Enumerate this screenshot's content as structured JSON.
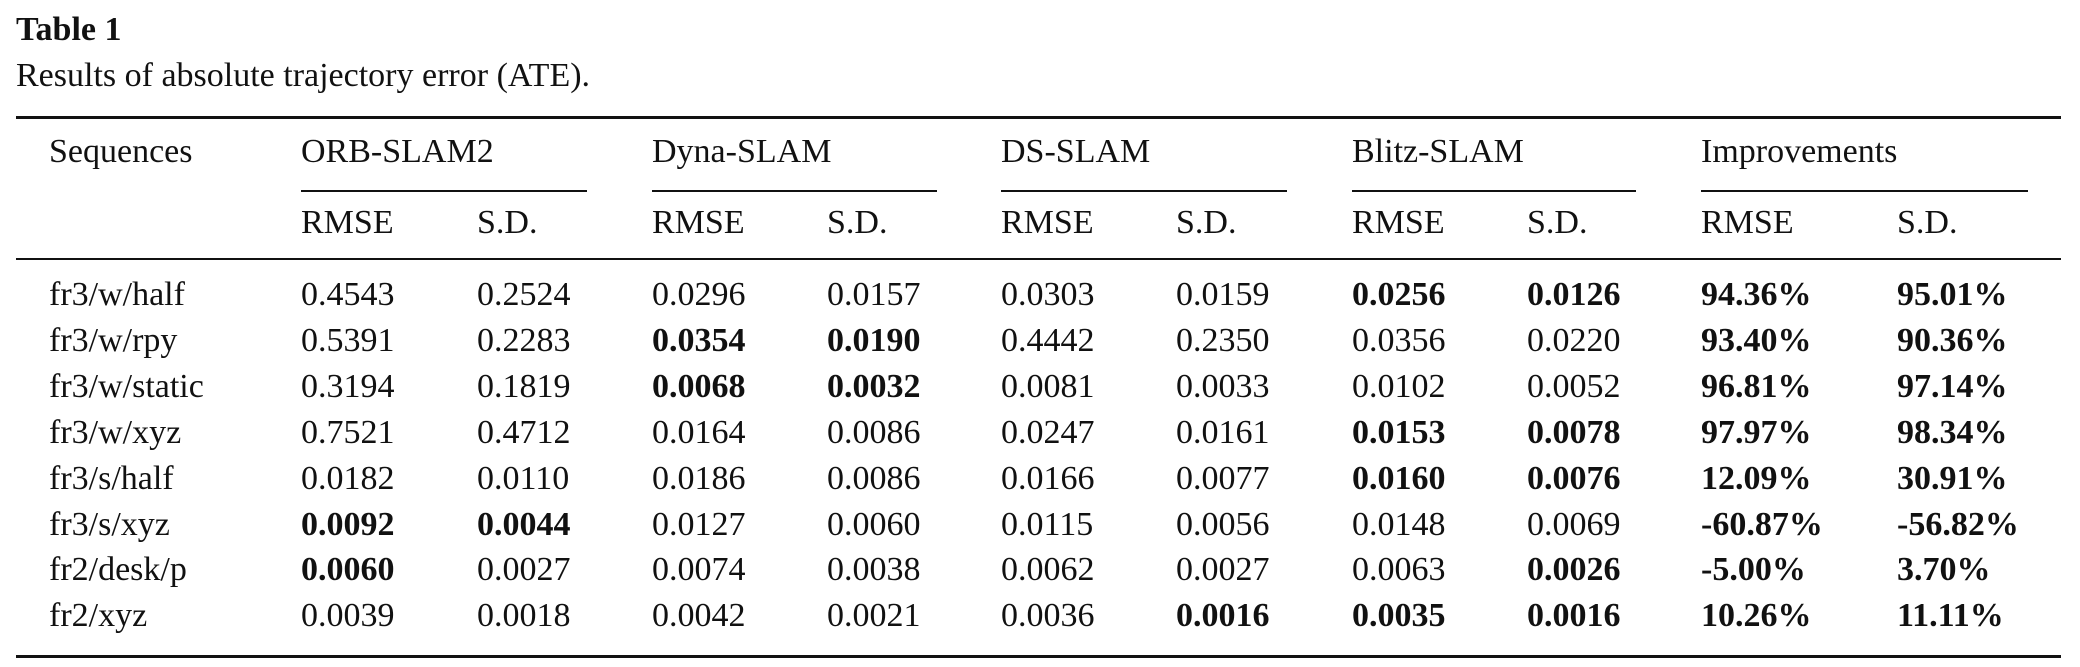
{
  "title": "Table 1",
  "caption": "Results of absolute trajectory error (ATE).",
  "table": {
    "groups": [
      "Sequences",
      "ORB-SLAM2",
      "Dyna-SLAM",
      "DS-SLAM",
      "Blitz-SLAM",
      "Improvements"
    ],
    "subheaders": [
      "RMSE",
      "S.D.",
      "RMSE",
      "S.D.",
      "RMSE",
      "S.D.",
      "RMSE",
      "S.D.",
      "RMSE",
      "S.D."
    ],
    "rows": [
      {
        "cells": [
          "fr3/w/half",
          "0.4543",
          "0.2524",
          "0.0296",
          "0.0157",
          "0.0303",
          "0.0159",
          "0.0256",
          "0.0126",
          "94.36%",
          "95.01%"
        ],
        "bold": [
          7,
          8,
          9,
          10
        ]
      },
      {
        "cells": [
          "fr3/w/rpy",
          "0.5391",
          "0.2283",
          "0.0354",
          "0.0190",
          "0.4442",
          "0.2350",
          "0.0356",
          "0.0220",
          "93.40%",
          "90.36%"
        ],
        "bold": [
          3,
          4,
          9,
          10
        ]
      },
      {
        "cells": [
          "fr3/w/static",
          "0.3194",
          "0.1819",
          "0.0068",
          "0.0032",
          "0.0081",
          "0.0033",
          "0.0102",
          "0.0052",
          "96.81%",
          "97.14%"
        ],
        "bold": [
          3,
          4,
          9,
          10
        ]
      },
      {
        "cells": [
          "fr3/w/xyz",
          "0.7521",
          "0.4712",
          "0.0164",
          "0.0086",
          "0.0247",
          "0.0161",
          "0.0153",
          "0.0078",
          "97.97%",
          "98.34%"
        ],
        "bold": [
          7,
          8,
          9,
          10
        ]
      },
      {
        "cells": [
          "fr3/s/half",
          "0.0182",
          "0.0110",
          "0.0186",
          "0.0086",
          "0.0166",
          "0.0077",
          "0.0160",
          "0.0076",
          "12.09%",
          "30.91%"
        ],
        "bold": [
          7,
          8,
          9,
          10
        ]
      },
      {
        "cells": [
          "fr3/s/xyz",
          "0.0092",
          "0.0044",
          "0.0127",
          "0.0060",
          "0.0115",
          "0.0056",
          "0.0148",
          "0.0069",
          "-60.87%",
          "-56.82%"
        ],
        "bold": [
          1,
          2,
          9,
          10
        ]
      },
      {
        "cells": [
          "fr2/desk/p",
          "0.0060",
          "0.0027",
          "0.0074",
          "0.0038",
          "0.0062",
          "0.0027",
          "0.0063",
          "0.0026",
          "-5.00%",
          "3.70%"
        ],
        "bold": [
          1,
          8,
          9,
          10
        ]
      },
      {
        "cells": [
          "fr2/xyz",
          "0.0039",
          "0.0018",
          "0.0042",
          "0.0021",
          "0.0036",
          "0.0016",
          "0.0035",
          "0.0016",
          "10.26%",
          "11.11%"
        ],
        "bold": [
          6,
          7,
          8,
          9,
          10
        ]
      }
    ]
  }
}
